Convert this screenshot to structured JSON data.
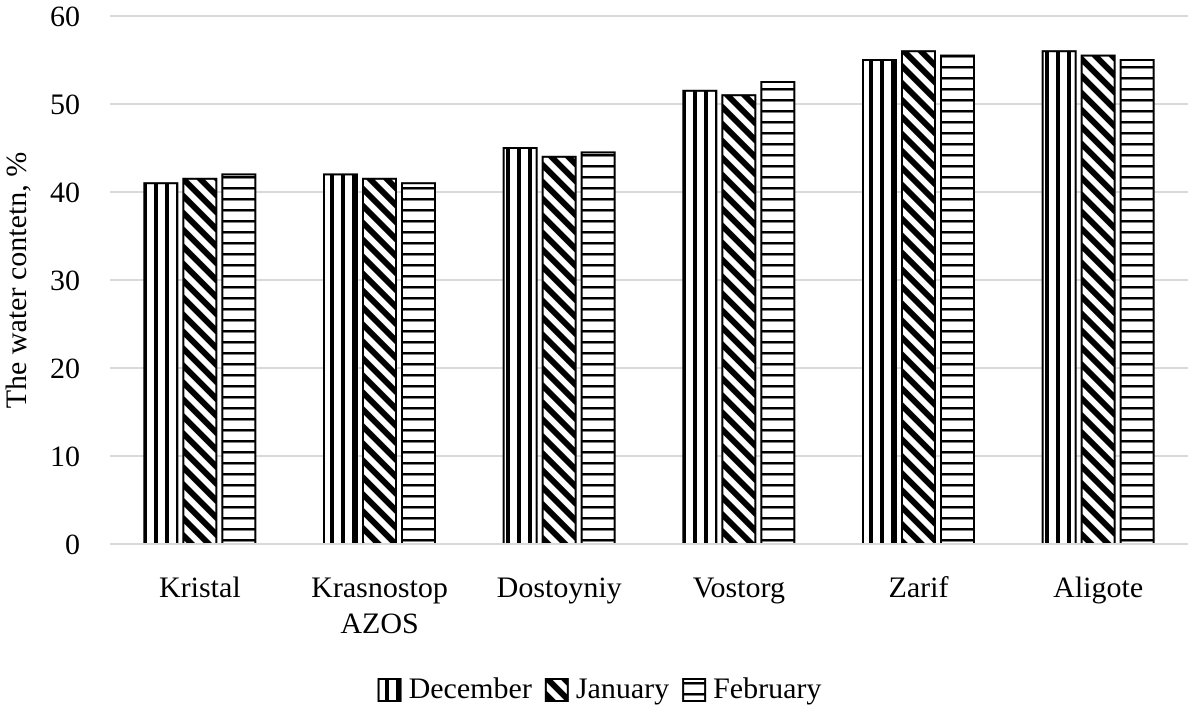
{
  "chart_data": {
    "type": "bar",
    "title": "",
    "xlabel": "",
    "ylabel": "The water contetn, %",
    "ylim": [
      0,
      60
    ],
    "yticks": [
      0,
      10,
      20,
      30,
      40,
      50,
      60
    ],
    "grid": "horizontal",
    "legend_position": "bottom",
    "categories": [
      [
        "Kristal"
      ],
      [
        "Krasnostop",
        "AZOS"
      ],
      [
        "Dostoyniy"
      ],
      [
        "Vostorg"
      ],
      [
        "Zarif"
      ],
      [
        "Aligote"
      ]
    ],
    "series": [
      {
        "name": "December",
        "pattern": "vertical-stripes",
        "values": [
          41,
          42,
          45,
          51.5,
          55,
          56
        ]
      },
      {
        "name": "January",
        "pattern": "diagonal-stripes",
        "values": [
          41.5,
          41.5,
          44,
          51,
          56,
          55.5
        ]
      },
      {
        "name": "February",
        "pattern": "horizontal-stripes",
        "values": [
          42,
          41,
          44.5,
          52.5,
          55.5,
          55
        ]
      }
    ],
    "colors": {
      "ink": "#000000",
      "grid": "#d9d9d9",
      "background": "#ffffff"
    }
  }
}
